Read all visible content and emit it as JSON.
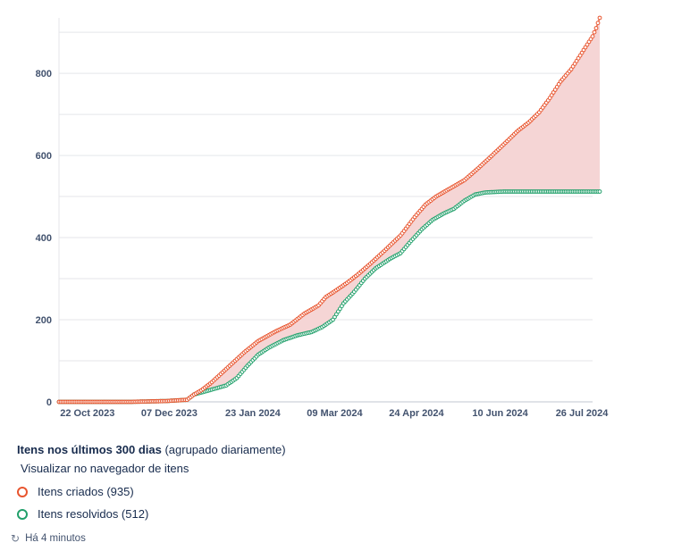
{
  "chart_data": {
    "type": "line",
    "title": "Itens nos últimos 300 dias",
    "x_tick_labels": [
      "22 Oct 2023",
      "07 Dec 2023",
      "23 Jan 2024",
      "09 Mar 2024",
      "24 Apr 2024",
      "10 Jun 2024",
      "26 Jul 2024"
    ],
    "x_tick_days": [
      16,
      62,
      109,
      155,
      201,
      248,
      294
    ],
    "x_range_days": [
      0,
      300
    ],
    "y_ticks": [
      0,
      200,
      400,
      600,
      800
    ],
    "ylim": [
      0,
      935
    ],
    "grid": true,
    "fill_between": true,
    "series": [
      {
        "name": "Itens criados",
        "color": "#e8552f",
        "fill": "#f5d5d5",
        "total": 935,
        "points": [
          [
            0,
            0
          ],
          [
            40,
            0
          ],
          [
            60,
            2
          ],
          [
            72,
            5
          ],
          [
            76,
            18
          ],
          [
            80,
            28
          ],
          [
            86,
            48
          ],
          [
            96,
            88
          ],
          [
            104,
            120
          ],
          [
            112,
            148
          ],
          [
            122,
            172
          ],
          [
            130,
            188
          ],
          [
            138,
            215
          ],
          [
            146,
            235
          ],
          [
            150,
            255
          ],
          [
            156,
            272
          ],
          [
            162,
            290
          ],
          [
            168,
            310
          ],
          [
            176,
            340
          ],
          [
            184,
            372
          ],
          [
            192,
            405
          ],
          [
            200,
            450
          ],
          [
            206,
            480
          ],
          [
            212,
            500
          ],
          [
            220,
            520
          ],
          [
            228,
            540
          ],
          [
            236,
            570
          ],
          [
            244,
            602
          ],
          [
            252,
            635
          ],
          [
            258,
            660
          ],
          [
            264,
            680
          ],
          [
            270,
            705
          ],
          [
            276,
            740
          ],
          [
            282,
            780
          ],
          [
            288,
            810
          ],
          [
            294,
            850
          ],
          [
            300,
            890
          ],
          [
            302,
            910
          ],
          [
            304,
            935
          ]
        ]
      },
      {
        "name": "Itens resolvidos",
        "color": "#22a06b",
        "fill": "none",
        "total": 512,
        "points": [
          [
            0,
            0
          ],
          [
            40,
            0
          ],
          [
            60,
            2
          ],
          [
            72,
            5
          ],
          [
            76,
            18
          ],
          [
            86,
            30
          ],
          [
            94,
            40
          ],
          [
            100,
            58
          ],
          [
            106,
            88
          ],
          [
            112,
            115
          ],
          [
            118,
            132
          ],
          [
            126,
            150
          ],
          [
            134,
            162
          ],
          [
            142,
            170
          ],
          [
            148,
            182
          ],
          [
            154,
            200
          ],
          [
            160,
            240
          ],
          [
            166,
            268
          ],
          [
            172,
            300
          ],
          [
            178,
            325
          ],
          [
            186,
            348
          ],
          [
            192,
            362
          ],
          [
            198,
            392
          ],
          [
            204,
            420
          ],
          [
            210,
            443
          ],
          [
            216,
            458
          ],
          [
            222,
            470
          ],
          [
            228,
            490
          ],
          [
            234,
            505
          ],
          [
            240,
            510
          ],
          [
            250,
            512
          ],
          [
            300,
            512
          ],
          [
            304,
            512
          ]
        ]
      }
    ]
  },
  "legend": {
    "title_bold": "Itens nos últimos 300 dias",
    "title_suffix": "(agrupado diariamente)",
    "link": "Visualizar no navegador de itens",
    "items": [
      {
        "label": "Itens criados (935)",
        "color": "#e8552f"
      },
      {
        "label": "Itens resolvidos (512)",
        "color": "#22a06b"
      }
    ]
  },
  "status": {
    "icon": "refresh-icon",
    "updated": "Há 4 minutos"
  }
}
